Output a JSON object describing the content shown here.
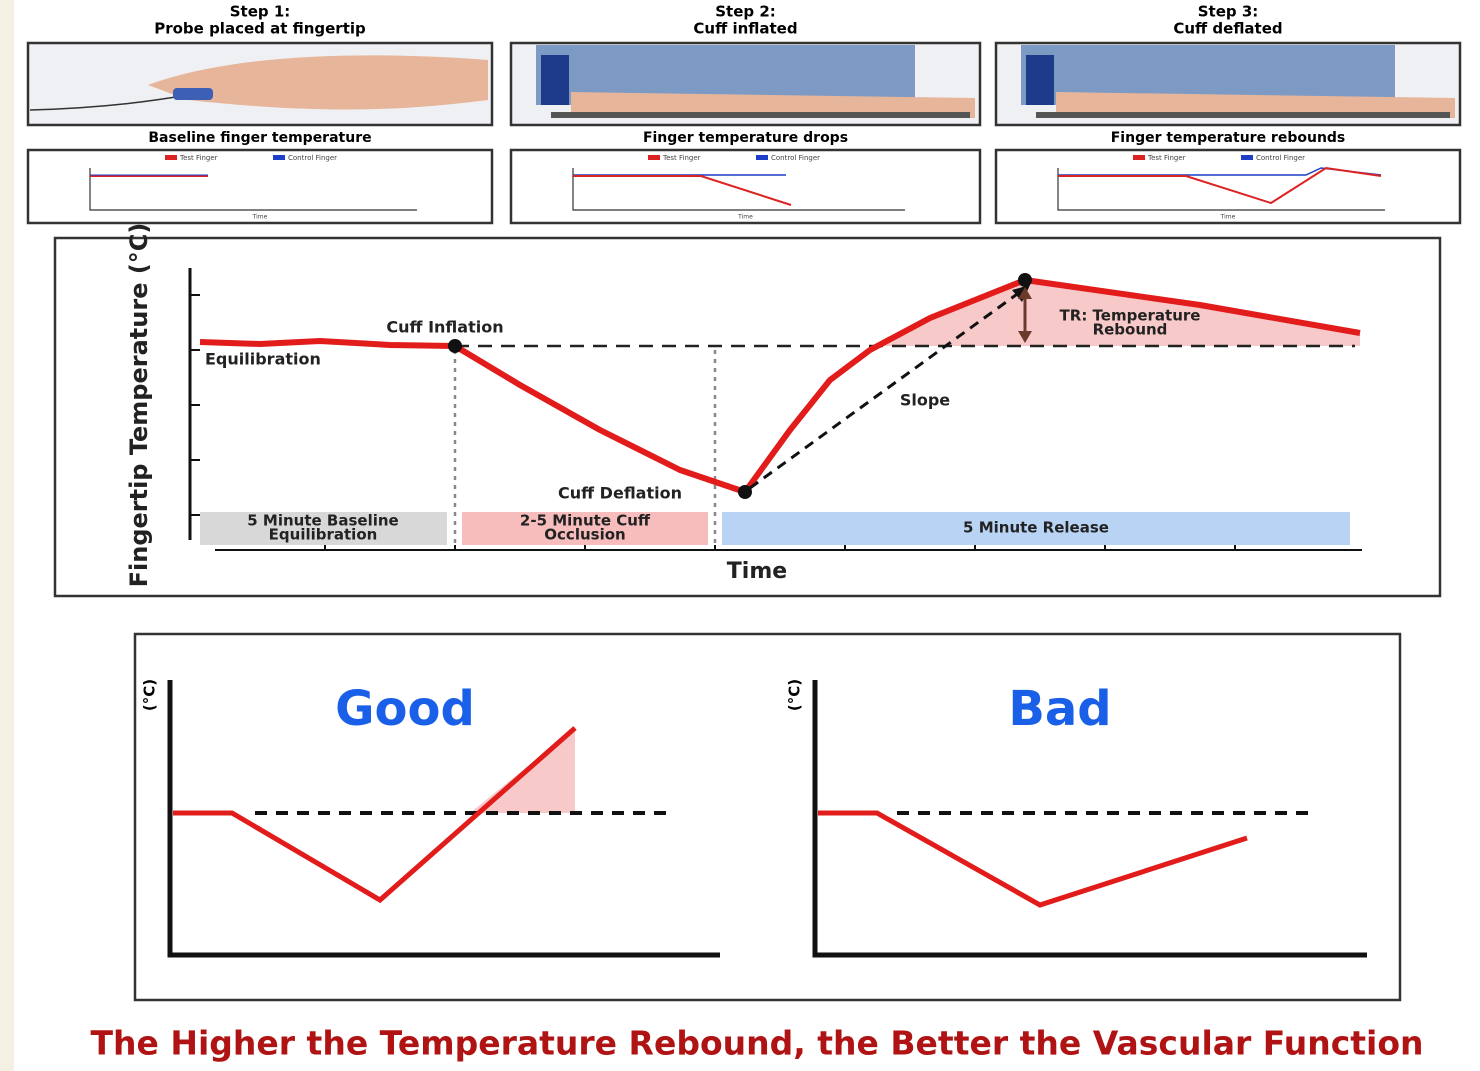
{
  "steps": [
    {
      "step": "Step 1:",
      "caption": "Probe placed at fingertip",
      "graph_title": "Baseline finger temperature"
    },
    {
      "step": "Step 2:",
      "caption": "Cuff inflated",
      "graph_title": "Finger temperature drops"
    },
    {
      "step": "Step 3:",
      "caption": "Cuff deflated",
      "graph_title": "Finger temperature rebounds"
    }
  ],
  "mini_graph": {
    "test_label": "Test Finger",
    "control_label": "Control Finger",
    "x_label": "Time"
  },
  "main": {
    "y_label": "Fingertip Temperature (°C)",
    "x_label": "Time",
    "cuff_inflation": "Cuff Inflation",
    "equilibration": "Equilibration",
    "rebound": [
      "TR: Temperature",
      "Rebound"
    ],
    "slope": "Slope",
    "cuff_deflation": "Cuff Deflation",
    "phases": [
      [
        "5 Minute Baseline",
        "Equilibration"
      ],
      [
        "2-5 Minute Cuff",
        "Occlusion"
      ],
      [
        "5 Minute Release"
      ]
    ]
  },
  "comparison": {
    "good": {
      "unit": "(°C)",
      "title": "Good"
    },
    "bad": {
      "unit": "(°C)",
      "title": "Bad"
    }
  },
  "footer": "The Higher the Temperature Rebound, the Better the Vascular Function"
}
